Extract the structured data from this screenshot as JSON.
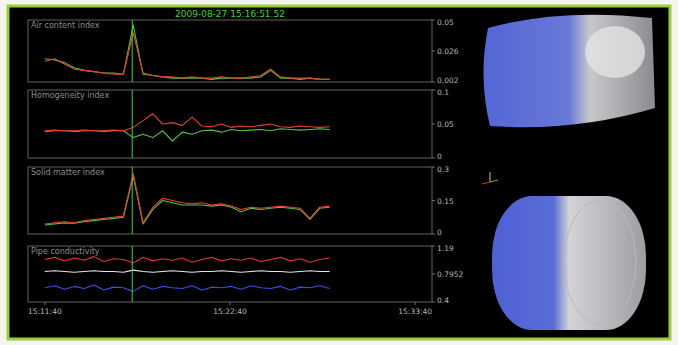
{
  "header": {
    "timestamp": "2009-08-27 15:16:51.52"
  },
  "chart_data": [
    {
      "type": "line",
      "title": "Air content index",
      "grid": false,
      "tick_labels": "y",
      "xlim": [
        54640,
        56080
      ],
      "ylim": [
        0.002,
        0.05
      ],
      "yticks": [
        0.002,
        0.026,
        0.05
      ],
      "cursor": 55011.52,
      "x": [
        54700,
        54735,
        54770,
        54805,
        54840,
        54875,
        54910,
        54945,
        54980,
        55015,
        55050,
        55085,
        55120,
        55155,
        55190,
        55225,
        55260,
        55295,
        55330,
        55365,
        55400,
        55435,
        55470,
        55505,
        55540,
        55575,
        55610,
        55645,
        55680,
        55715
      ],
      "series": [
        {
          "color": "#54c43c",
          "values": [
            0.02,
            0.019,
            0.017,
            0.013,
            0.011,
            0.01,
            0.009,
            0.009,
            0.008,
            0.046,
            0.008,
            0.007,
            0.006,
            0.005,
            0.005,
            0.005,
            0.005,
            0.004,
            0.005,
            0.005,
            0.005,
            0.005,
            0.006,
            0.011,
            0.005,
            0.005,
            0.004,
            0.005,
            0.004,
            0.004
          ]
        },
        {
          "color": "#e8402c",
          "values": [
            0.018,
            0.02,
            0.016,
            0.012,
            0.011,
            0.01,
            0.009,
            0.008,
            0.008,
            0.04,
            0.009,
            0.007,
            0.006,
            0.006,
            0.005,
            0.006,
            0.005,
            0.005,
            0.006,
            0.005,
            0.005,
            0.006,
            0.007,
            0.012,
            0.006,
            0.005,
            0.005,
            0.005,
            0.004,
            0.004
          ]
        }
      ]
    },
    {
      "type": "line",
      "title": "Homogeneity index",
      "grid": false,
      "tick_labels": "y",
      "xlim": [
        54640,
        56080
      ],
      "ylim": [
        0,
        0.1
      ],
      "yticks": [
        0,
        0.05,
        0.1
      ],
      "cursor": 55011.52,
      "x": [
        54700,
        54735,
        54770,
        54805,
        54840,
        54875,
        54910,
        54945,
        54980,
        55015,
        55050,
        55085,
        55120,
        55155,
        55190,
        55225,
        55260,
        55295,
        55330,
        55365,
        55400,
        55435,
        55470,
        55505,
        55540,
        55575,
        55610,
        55645,
        55680,
        55715
      ],
      "series": [
        {
          "color": "#54c43c",
          "values": [
            0.039,
            0.04,
            0.04,
            0.039,
            0.04,
            0.04,
            0.039,
            0.04,
            0.04,
            0.03,
            0.035,
            0.03,
            0.04,
            0.025,
            0.038,
            0.035,
            0.04,
            0.041,
            0.038,
            0.042,
            0.04,
            0.041,
            0.042,
            0.04,
            0.043,
            0.042,
            0.041,
            0.042,
            0.043,
            0.042
          ]
        },
        {
          "color": "#e8402c",
          "values": [
            0.04,
            0.041,
            0.04,
            0.04,
            0.041,
            0.04,
            0.04,
            0.041,
            0.04,
            0.045,
            0.055,
            0.065,
            0.05,
            0.052,
            0.048,
            0.06,
            0.047,
            0.046,
            0.05,
            0.045,
            0.047,
            0.046,
            0.048,
            0.05,
            0.046,
            0.045,
            0.047,
            0.046,
            0.045,
            0.046
          ]
        }
      ]
    },
    {
      "type": "line",
      "title": "Solid matter index",
      "grid": false,
      "tick_labels": "y",
      "xlim": [
        54640,
        56080
      ],
      "ylim": [
        0,
        0.3
      ],
      "yticks": [
        0,
        0.15,
        0.3
      ],
      "cursor": 55011.52,
      "x": [
        54700,
        54735,
        54770,
        54805,
        54840,
        54875,
        54910,
        54945,
        54980,
        55015,
        55050,
        55085,
        55120,
        55155,
        55190,
        55225,
        55260,
        55295,
        55330,
        55365,
        55400,
        55435,
        55470,
        55505,
        55540,
        55575,
        55610,
        55645,
        55680,
        55715
      ],
      "series": [
        {
          "color": "#54c43c",
          "values": [
            0.04,
            0.045,
            0.05,
            0.048,
            0.055,
            0.06,
            0.065,
            0.07,
            0.075,
            0.26,
            0.045,
            0.11,
            0.15,
            0.14,
            0.13,
            0.13,
            0.13,
            0.125,
            0.13,
            0.12,
            0.1,
            0.115,
            0.11,
            0.115,
            0.12,
            0.115,
            0.11,
            0.065,
            0.115,
            0.12
          ]
        },
        {
          "color": "#e8402c",
          "values": [
            0.045,
            0.05,
            0.055,
            0.05,
            0.06,
            0.065,
            0.07,
            0.075,
            0.08,
            0.27,
            0.05,
            0.12,
            0.16,
            0.15,
            0.14,
            0.135,
            0.14,
            0.13,
            0.135,
            0.125,
            0.11,
            0.12,
            0.115,
            0.12,
            0.125,
            0.12,
            0.115,
            0.07,
            0.12,
            0.125
          ]
        }
      ]
    },
    {
      "type": "line",
      "title": "Pipe conductivity",
      "grid": false,
      "xlim": [
        54640,
        56080
      ],
      "ylim": [
        0.4,
        1.19
      ],
      "yticks": [
        0.4,
        0.7952,
        1.19
      ],
      "xticks": [
        {
          "value": 54700,
          "label": "15:11:40"
        },
        {
          "value": 55360,
          "label": "15:22:40"
        },
        {
          "value": 56020,
          "label": "15:33:40"
        }
      ],
      "cursor": 55011.52,
      "x": [
        54700,
        54735,
        54770,
        54805,
        54840,
        54875,
        54910,
        54945,
        54980,
        55015,
        55050,
        55085,
        55120,
        55155,
        55190,
        55225,
        55260,
        55295,
        55330,
        55365,
        55400,
        55435,
        55470,
        55505,
        55540,
        55575,
        55610,
        55645,
        55680,
        55715
      ],
      "series": [
        {
          "color": "#e8322a",
          "values": [
            1.0,
            1.03,
            0.98,
            1.02,
            0.99,
            1.04,
            0.97,
            1.01,
            1.0,
            0.95,
            1.03,
            0.98,
            1.01,
            0.99,
            1.02,
            0.96,
            1.0,
            1.03,
            0.98,
            1.01,
            0.99,
            1.02,
            0.97,
            1.0,
            1.03,
            0.98,
            1.01,
            0.96,
            1.0,
            1.02
          ]
        },
        {
          "color": "#e6e6e6",
          "values": [
            0.83,
            0.84,
            0.83,
            0.82,
            0.83,
            0.84,
            0.83,
            0.83,
            0.82,
            0.85,
            0.83,
            0.82,
            0.83,
            0.84,
            0.83,
            0.82,
            0.83,
            0.83,
            0.84,
            0.83,
            0.82,
            0.83,
            0.84,
            0.83,
            0.83,
            0.82,
            0.83,
            0.84,
            0.83,
            0.83
          ]
        },
        {
          "color": "#3452e6",
          "values": [
            0.6,
            0.63,
            0.58,
            0.62,
            0.59,
            0.64,
            0.57,
            0.61,
            0.6,
            0.55,
            0.63,
            0.58,
            0.62,
            0.6,
            0.59,
            0.63,
            0.57,
            0.61,
            0.6,
            0.62,
            0.58,
            0.63,
            0.6,
            0.59,
            0.62,
            0.57,
            0.61,
            0.6,
            0.63,
            0.59
          ]
        }
      ]
    }
  ]
}
